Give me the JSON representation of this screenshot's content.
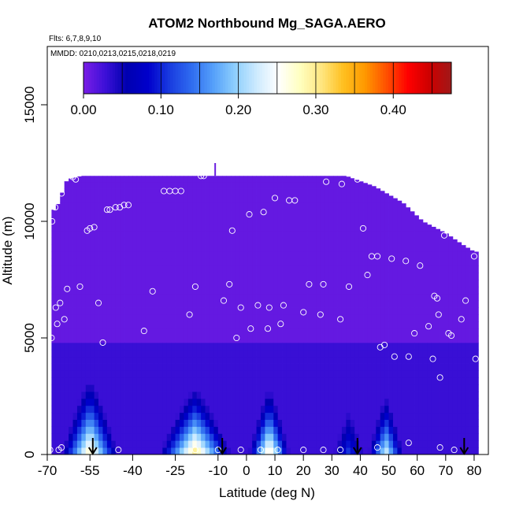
{
  "chart_data": {
    "type": "heatmap",
    "title": "ATOM2 Northbound Mg_SAGA.AERO",
    "flights_label": "Flts: 6,7,8,9,10",
    "dates_label": "MMDD: 0210,0213,0215,0218,0219",
    "xlabel": "Latitude (deg N)",
    "ylabel": "Altitude (m)",
    "xlim": [
      -70,
      85
    ],
    "ylim": [
      0,
      17500
    ],
    "xticks": [
      -70,
      -55,
      -40,
      -25,
      -10,
      0,
      10,
      20,
      30,
      40,
      50,
      60,
      70,
      80
    ],
    "yticks": [
      0,
      5000,
      10000,
      15000
    ],
    "colorbar": {
      "range": [
        0,
        0.475
      ],
      "ticks": [
        0.0,
        0.1,
        0.2,
        0.3,
        0.4
      ],
      "tick_labels": [
        "0.00",
        "0.10",
        "0.20",
        "0.30",
        "0.40"
      ],
      "colors": [
        "#7a1ee6",
        "#3d10d8",
        "#0000b0",
        "#0000cc",
        "#1a3de0",
        "#2f6cf0",
        "#55a0fa",
        "#8ecffd",
        "#cdeafe",
        "#ffffff",
        "#ffffc0",
        "#ffe680",
        "#ffc020",
        "#ff9900",
        "#ff5000",
        "#ff0000",
        "#cc0000",
        "#a01818"
      ]
    },
    "profiles": [
      {
        "center": -55,
        "halfwidth": 11,
        "peak": 0.3,
        "height": 4000
      },
      {
        "center": -18,
        "halfwidth": 14,
        "peak": 0.32,
        "height": 3500
      },
      {
        "center": 8,
        "halfwidth": 8,
        "peak": 0.3,
        "height": 3500
      },
      {
        "center": 36,
        "halfwidth": 7,
        "peak": 0.12,
        "height": 3000
      },
      {
        "center": 49,
        "halfwidth": 7,
        "peak": 0.24,
        "height": 3200
      }
    ],
    "lower_band": {
      "top_altitude": 4700,
      "value": 0.03,
      "top_value": 0.02
    },
    "upper_value": 0.01,
    "ceiling": [
      {
        "lat": -67,
        "alt": 10500
      },
      {
        "lat": -63,
        "alt": 11800
      },
      {
        "lat": -58,
        "alt": 11950
      },
      {
        "lat": -20,
        "alt": 11950
      },
      {
        "lat": 35,
        "alt": 11950
      },
      {
        "lat": 45,
        "alt": 11500
      },
      {
        "lat": 55,
        "alt": 10800
      },
      {
        "lat": 62,
        "alt": 10000
      },
      {
        "lat": 70,
        "alt": 9500
      },
      {
        "lat": 76,
        "alt": 9000
      },
      {
        "lat": 80,
        "alt": 8700
      }
    ],
    "cap_marker": {
      "lat": -11,
      "alt": 12500
    },
    "sample_points": [
      [
        -68.5,
        5000
      ],
      [
        -68.3,
        10000
      ],
      [
        -67.2,
        10600
      ],
      [
        -67,
        6300
      ],
      [
        -66.5,
        5600
      ],
      [
        -65.5,
        6500
      ],
      [
        -65,
        11200
      ],
      [
        -64,
        5800
      ],
      [
        -63,
        7100
      ],
      [
        -61,
        11900
      ],
      [
        -60,
        11800
      ],
      [
        -58.5,
        7200
      ],
      [
        -56,
        9600
      ],
      [
        -55,
        9700
      ],
      [
        -53.5,
        9750
      ],
      [
        -52,
        6500
      ],
      [
        -50.5,
        4800
      ],
      [
        -49,
        10500
      ],
      [
        -48,
        10500
      ],
      [
        -46,
        10600
      ],
      [
        -44.5,
        10600
      ],
      [
        -43,
        10700
      ],
      [
        -41.5,
        10700
      ],
      [
        -36,
        5300
      ],
      [
        -33,
        7000
      ],
      [
        -29,
        11300
      ],
      [
        -27,
        11300
      ],
      [
        -25,
        11300
      ],
      [
        -23,
        11300
      ],
      [
        -20,
        6000
      ],
      [
        -18,
        7200
      ],
      [
        -16,
        11950
      ],
      [
        -15,
        11950
      ],
      [
        -8,
        6600
      ],
      [
        -6,
        7300
      ],
      [
        -5,
        9600
      ],
      [
        -3.5,
        5000
      ],
      [
        -2,
        6300
      ],
      [
        1,
        10300
      ],
      [
        1.5,
        5400
      ],
      [
        4,
        6400
      ],
      [
        6,
        10400
      ],
      [
        7.5,
        5400
      ],
      [
        8,
        6300
      ],
      [
        10,
        11000
      ],
      [
        12,
        5600
      ],
      [
        13,
        6400
      ],
      [
        15,
        10900
      ],
      [
        17,
        10900
      ],
      [
        20,
        6100
      ],
      [
        22,
        7300
      ],
      [
        26,
        6000
      ],
      [
        27,
        7300
      ],
      [
        28,
        11700
      ],
      [
        33,
        5800
      ],
      [
        33.5,
        11600
      ],
      [
        36,
        7200
      ],
      [
        39,
        11800
      ],
      [
        41,
        9700
      ],
      [
        42.5,
        7700
      ],
      [
        44,
        8500
      ],
      [
        46,
        8500
      ],
      [
        47,
        4600
      ],
      [
        48.5,
        4700
      ],
      [
        51,
        8400
      ],
      [
        52,
        4200
      ],
      [
        56,
        8300
      ],
      [
        57,
        4200
      ],
      [
        59,
        5200
      ],
      [
        61,
        8100
      ],
      [
        64,
        5500
      ],
      [
        65.5,
        4100
      ],
      [
        66,
        6800
      ],
      [
        67,
        6700
      ],
      [
        67.5,
        6000
      ],
      [
        68,
        3300
      ],
      [
        69.5,
        9400
      ],
      [
        71,
        5200
      ],
      [
        72,
        5100
      ],
      [
        74,
        10000
      ],
      [
        75.5,
        5800
      ],
      [
        77,
        6600
      ],
      [
        78.5,
        9300
      ],
      [
        80,
        8500
      ],
      [
        80.5,
        4100
      ],
      [
        -69,
        200
      ],
      [
        -66,
        200
      ],
      [
        -65,
        300
      ],
      [
        -45,
        200
      ],
      [
        -18,
        200
      ],
      [
        -10,
        200
      ],
      [
        -2,
        200
      ],
      [
        5,
        200
      ],
      [
        11,
        200
      ],
      [
        20,
        200
      ],
      [
        27,
        200
      ],
      [
        33,
        200
      ],
      [
        46,
        300
      ],
      [
        57,
        500
      ],
      [
        68,
        300
      ],
      [
        73,
        200
      ]
    ],
    "arrows": [
      -54,
      -8.5,
      39,
      76.5
    ]
  }
}
